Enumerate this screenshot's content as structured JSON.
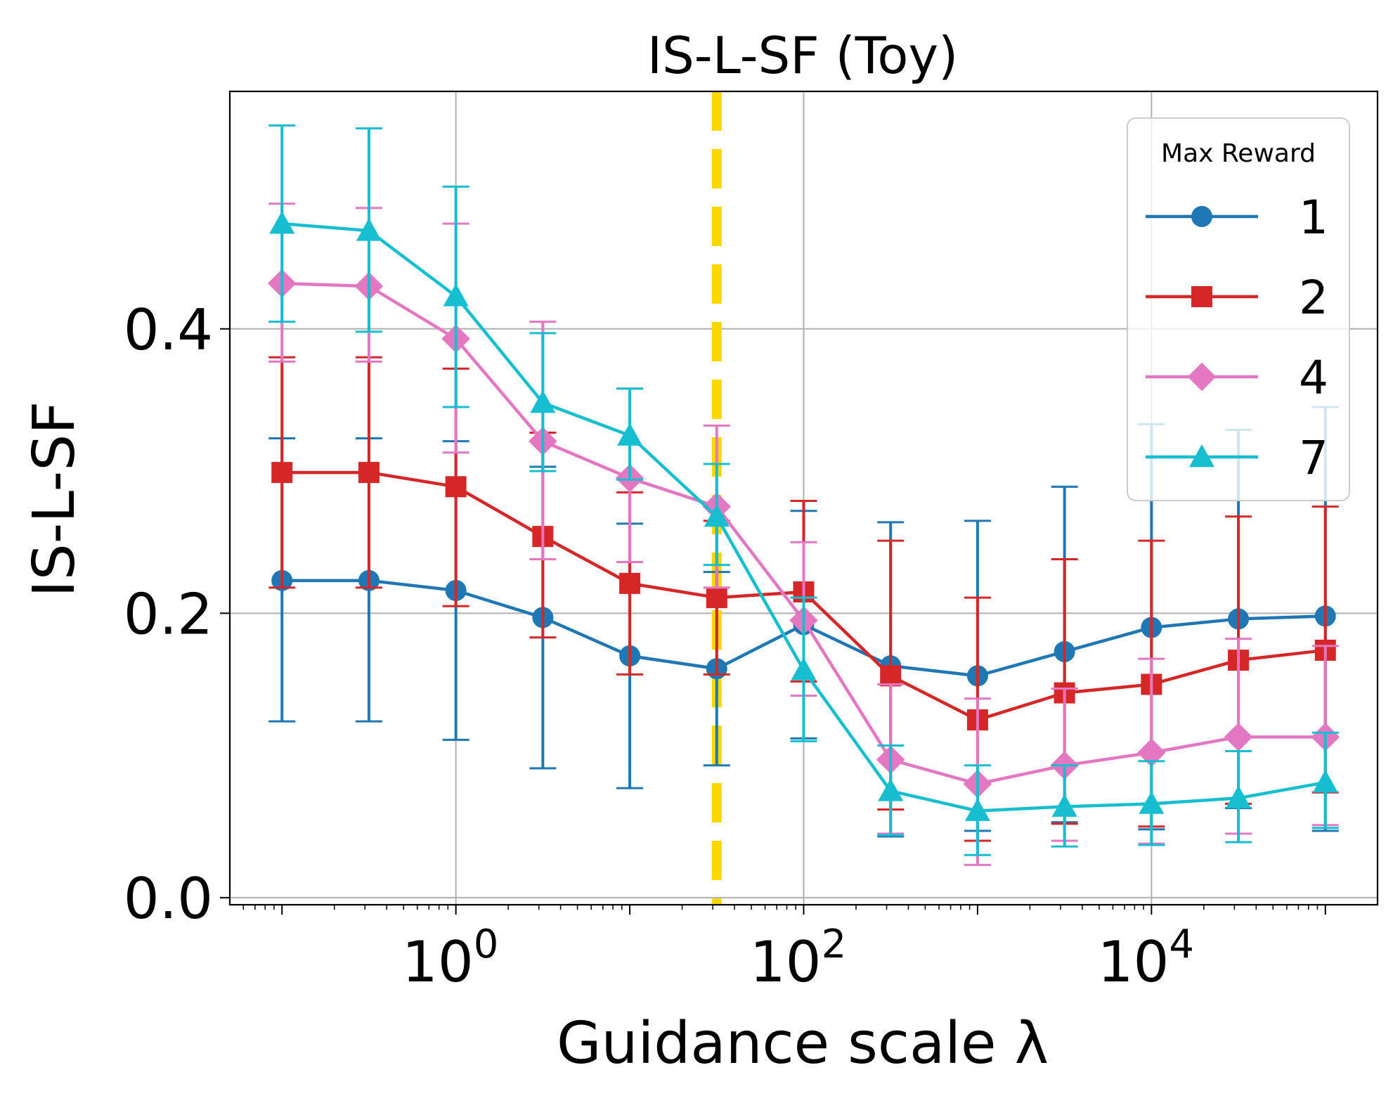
{
  "chart_data": {
    "type": "line",
    "title": "IS-L-SF (Toy)",
    "xlabel": "Guidance scale λ",
    "ylabel": "IS-L-SF",
    "xscale": "log",
    "x_log10_range": [
      -1.3,
      5.3
    ],
    "ylim": [
      -0.005,
      0.567
    ],
    "grid": true,
    "x_ticks": [
      {
        "base": "10",
        "exp": "0",
        "log10": 0
      },
      {
        "base": "10",
        "exp": "2",
        "log10": 2
      },
      {
        "base": "10",
        "exp": "4",
        "log10": 4
      }
    ],
    "y_ticks": [
      {
        "label": "0.0",
        "value": 0.0
      },
      {
        "label": "0.2",
        "value": 0.2
      },
      {
        "label": "0.4",
        "value": 0.4
      }
    ],
    "reference_line": {
      "x_log10": 1.5,
      "color": "#FFD700",
      "style": "dashed"
    },
    "legend": {
      "title": "Max Reward",
      "position": "top-right"
    },
    "x_log10": [
      -1,
      -0.5,
      0,
      0.5,
      1,
      1.5,
      2,
      2.5,
      3,
      3.5,
      4,
      4.5,
      5
    ],
    "series": [
      {
        "name": "1",
        "color": "#1f77b4",
        "marker": "circle",
        "values": [
          0.223,
          0.223,
          0.216,
          0.197,
          0.17,
          0.161,
          0.192,
          0.163,
          0.156,
          0.173,
          0.19,
          0.196,
          0.198
        ],
        "err_low": [
          0.124,
          0.124,
          0.111,
          0.091,
          0.077,
          0.093,
          0.112,
          0.043,
          0.047,
          0.053,
          0.048,
          0.063,
          0.047
        ],
        "err_high": [
          0.323,
          0.323,
          0.321,
          0.303,
          0.263,
          0.229,
          0.272,
          0.264,
          0.265,
          0.289,
          0.333,
          0.329,
          0.345
        ]
      },
      {
        "name": "2",
        "color": "#d62728",
        "marker": "square",
        "values": [
          0.299,
          0.299,
          0.289,
          0.254,
          0.221,
          0.211,
          0.215,
          0.156,
          0.125,
          0.144,
          0.15,
          0.167,
          0.174
        ],
        "err_low": [
          0.218,
          0.218,
          0.205,
          0.183,
          0.157,
          0.157,
          0.152,
          0.062,
          0.04,
          0.052,
          0.05,
          0.066,
          0.074
        ],
        "err_high": [
          0.38,
          0.38,
          0.372,
          0.327,
          0.285,
          0.265,
          0.279,
          0.251,
          0.211,
          0.238,
          0.251,
          0.268,
          0.275
        ]
      },
      {
        "name": "4",
        "color": "#e377c2",
        "marker": "diamond",
        "values": [
          0.432,
          0.43,
          0.393,
          0.321,
          0.295,
          0.275,
          0.195,
          0.097,
          0.08,
          0.093,
          0.102,
          0.113,
          0.113
        ],
        "err_low": [
          0.377,
          0.377,
          0.313,
          0.238,
          0.236,
          0.218,
          0.142,
          0.045,
          0.023,
          0.04,
          0.038,
          0.045,
          0.051
        ],
        "err_high": [
          0.488,
          0.485,
          0.474,
          0.405,
          0.358,
          0.332,
          0.25,
          0.15,
          0.14,
          0.147,
          0.168,
          0.182,
          0.177
        ]
      },
      {
        "name": "7",
        "color": "#17becf",
        "marker": "triangle",
        "values": [
          0.474,
          0.469,
          0.423,
          0.348,
          0.325,
          0.268,
          0.16,
          0.075,
          0.061,
          0.064,
          0.066,
          0.07,
          0.081
        ],
        "err_low": [
          0.405,
          0.398,
          0.345,
          0.3,
          0.294,
          0.234,
          0.11,
          0.044,
          0.03,
          0.036,
          0.037,
          0.039,
          0.049
        ],
        "err_high": [
          0.543,
          0.541,
          0.5,
          0.397,
          0.358,
          0.305,
          0.211,
          0.107,
          0.093,
          0.093,
          0.096,
          0.103,
          0.116
        ]
      }
    ]
  }
}
